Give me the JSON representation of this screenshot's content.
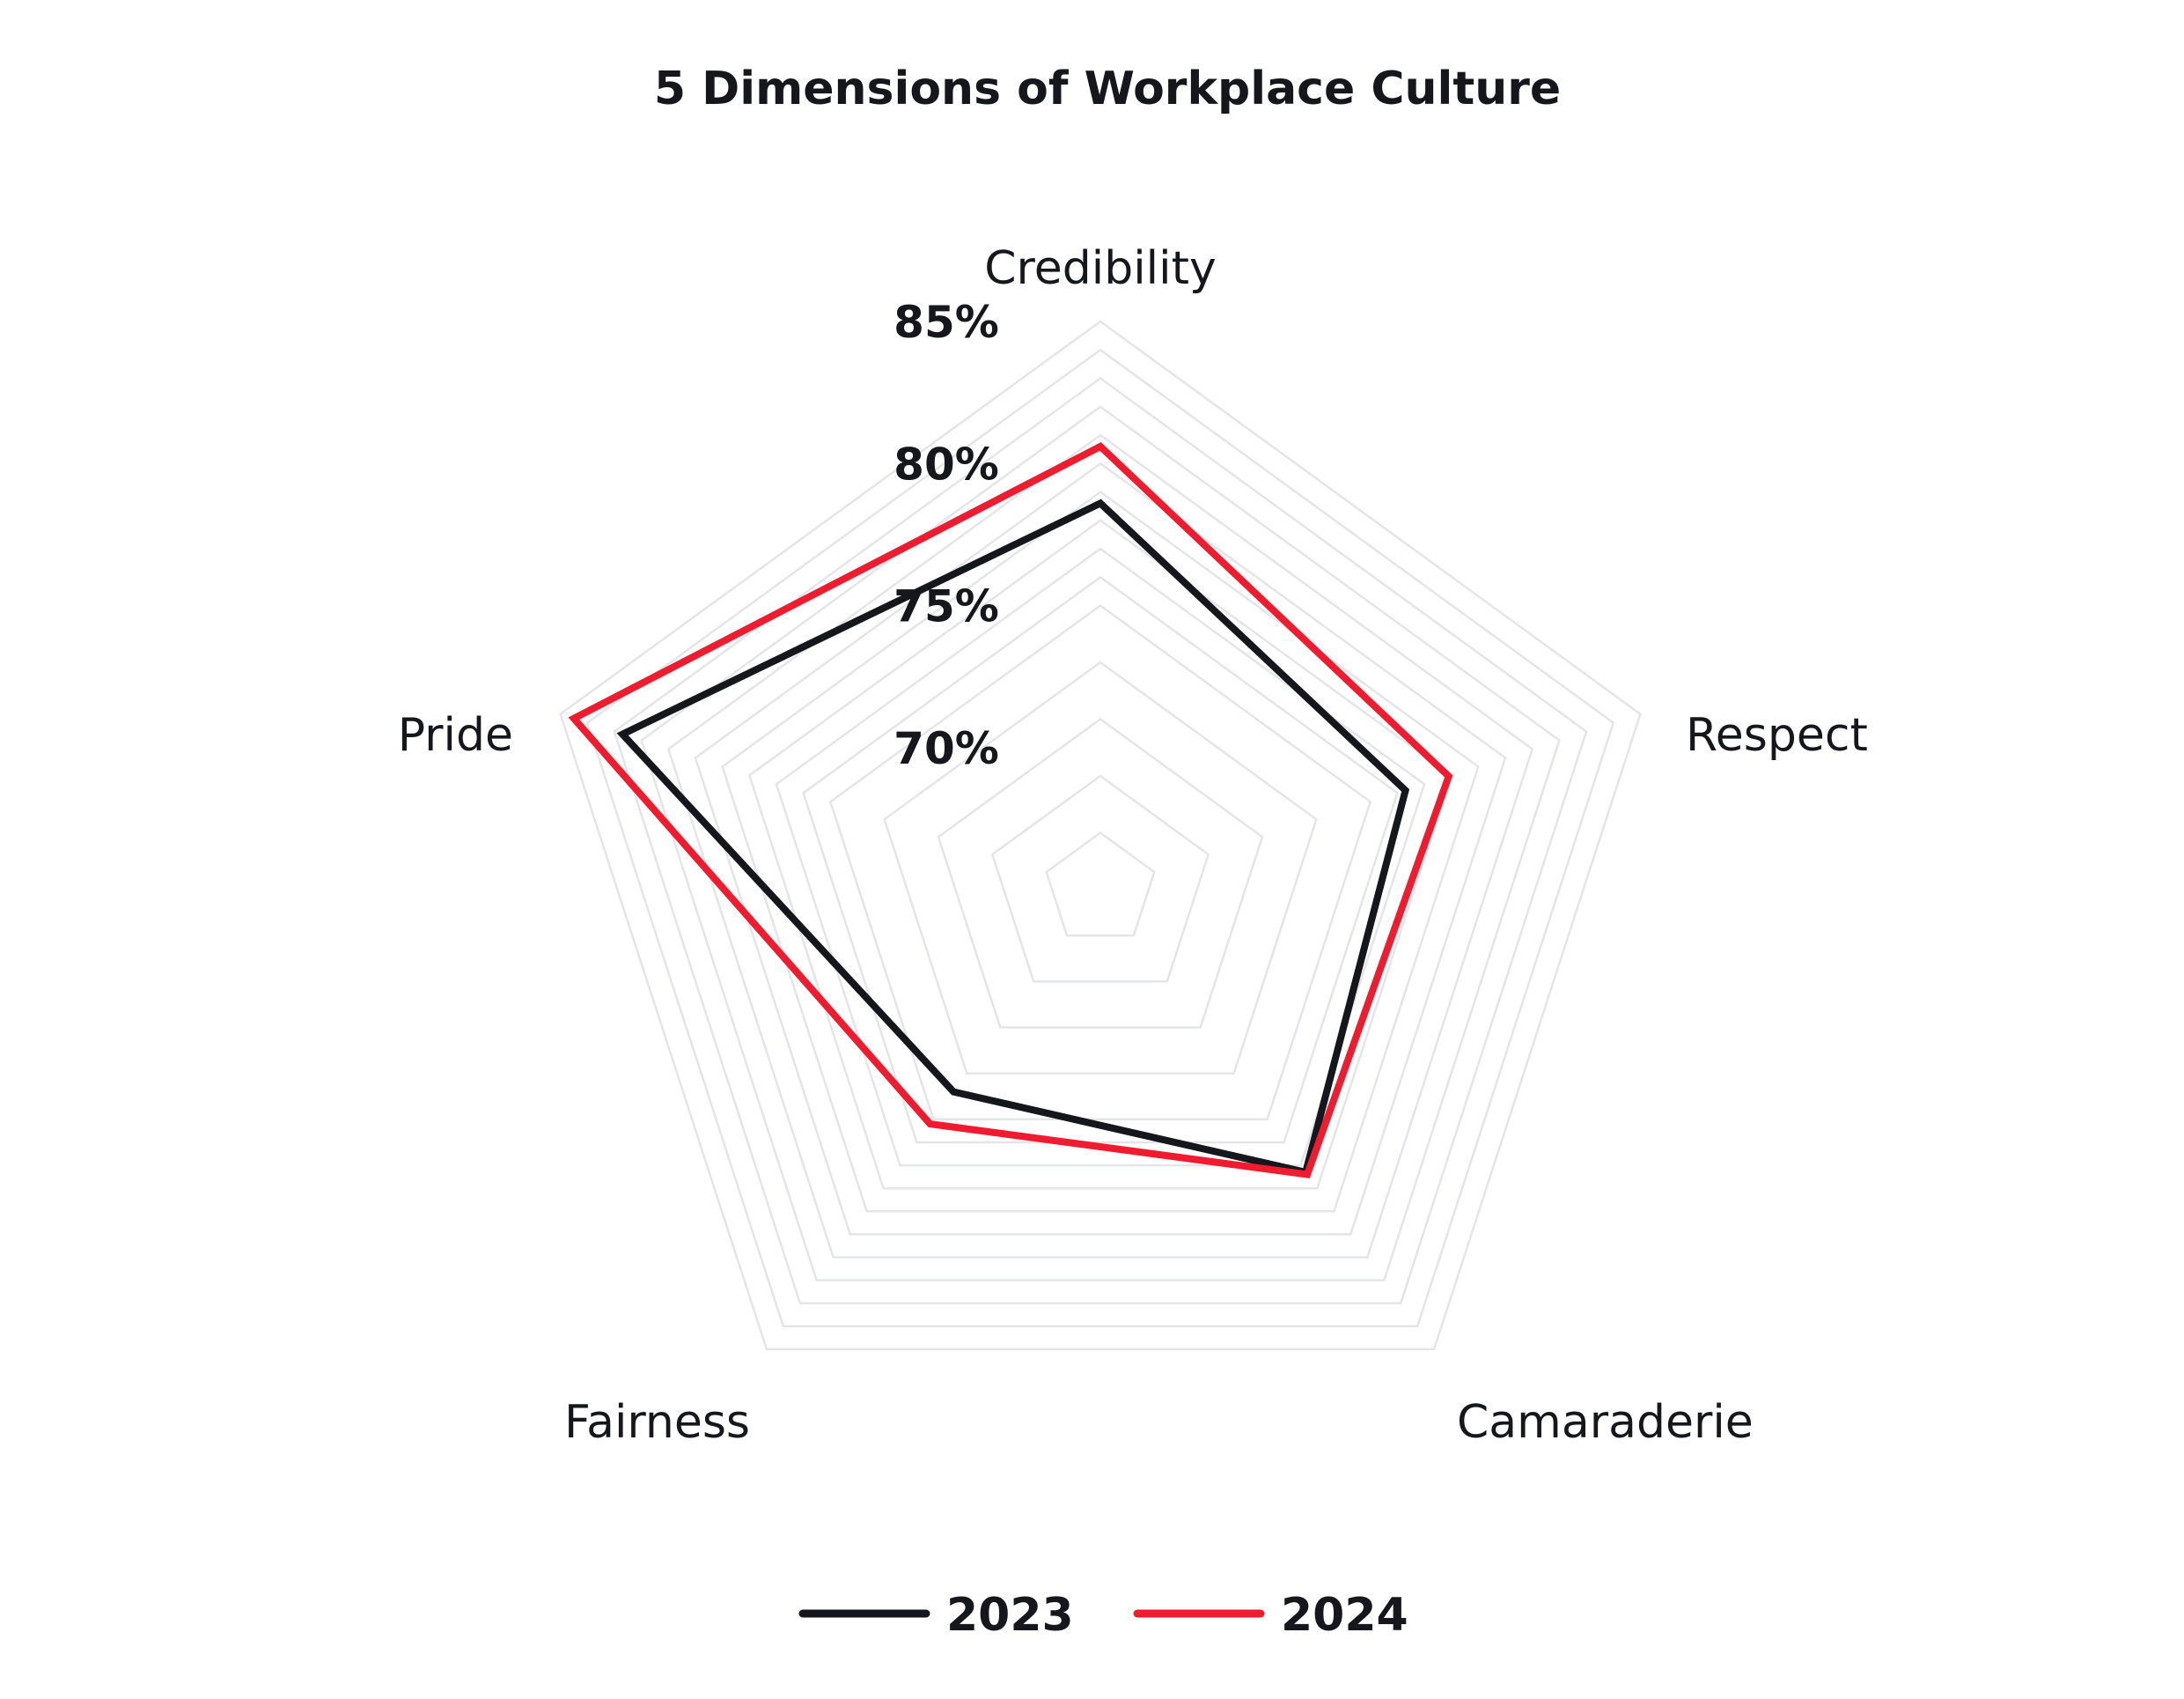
{
  "chart_data": {
    "type": "radar",
    "title": "5 Dimensions of Workplace Culture",
    "axes": [
      "Credibility",
      "Respect",
      "Camaraderie",
      "Fairness",
      "Pride"
    ],
    "r_range": [
      65,
      85
    ],
    "grid_levels": [
      67,
      69,
      71,
      73,
      75,
      76,
      77,
      78,
      79,
      80,
      81,
      82,
      83,
      84,
      85
    ],
    "tick_labels": [
      {
        "value": 85,
        "label": "85%"
      },
      {
        "value": 80,
        "label": "80%"
      },
      {
        "value": 75,
        "label": "75%"
      },
      {
        "value": 70,
        "label": "70%"
      }
    ],
    "series": [
      {
        "name": "2023",
        "color": "#15171c",
        "values": [
          78.6,
          76.3,
          77.3,
          73.8,
          82.7
        ]
      },
      {
        "name": "2024",
        "color": "#ef1b2e",
        "values": [
          80.6,
          77.9,
          77.4,
          75.2,
          84.5
        ]
      }
    ],
    "legend_position": "bottom-center"
  }
}
